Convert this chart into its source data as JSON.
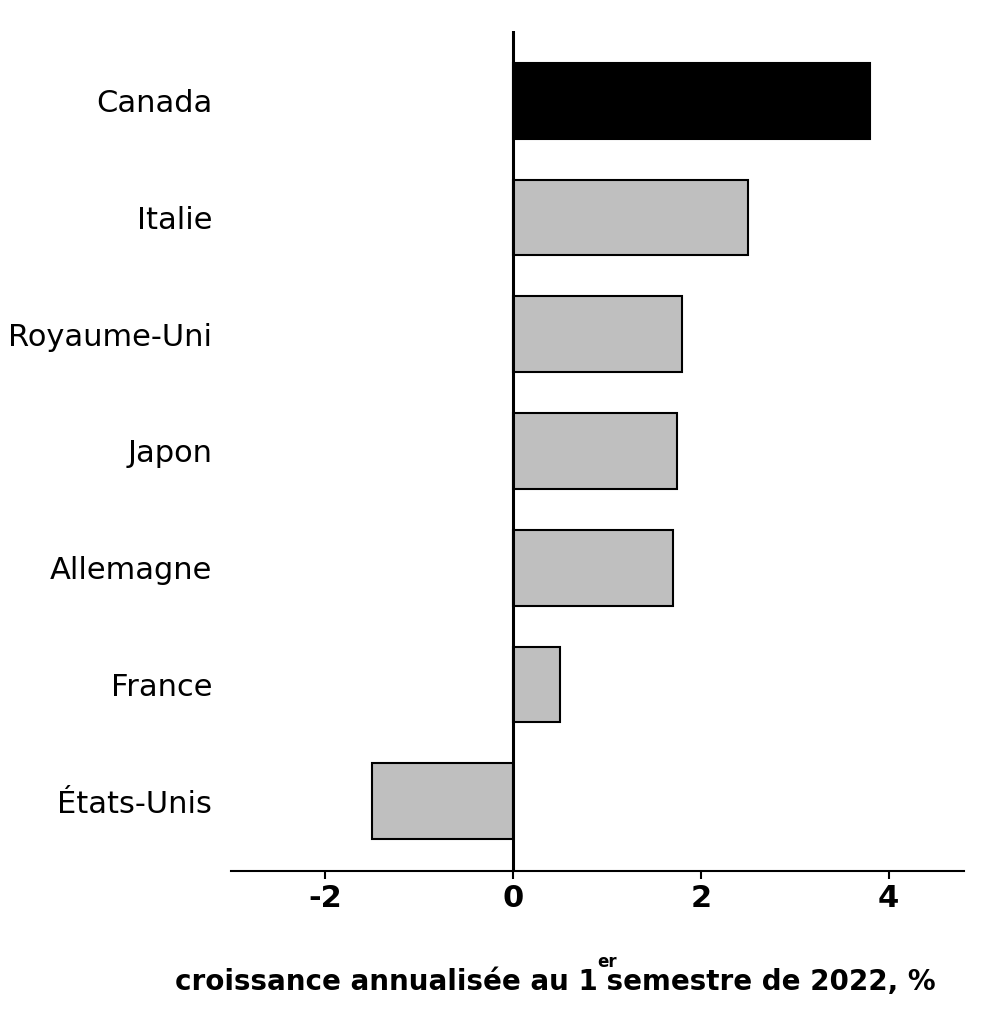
{
  "categories": [
    "Canada",
    "Italie",
    "Royaume-Uni",
    "Japon",
    "Allemagne",
    "France",
    "États-Unis"
  ],
  "values": [
    3.8,
    2.5,
    1.8,
    1.75,
    1.7,
    0.5,
    -1.5
  ],
  "bar_colors": [
    "#000000",
    "#bfbfbf",
    "#bfbfbf",
    "#bfbfbf",
    "#bfbfbf",
    "#bfbfbf",
    "#bfbfbf"
  ],
  "xlim": [
    -3.0,
    4.8
  ],
  "xticks": [
    -2,
    0,
    2,
    4
  ],
  "background_color": "#ffffff",
  "bar_edge_color": "#000000",
  "bar_linewidth": 1.5,
  "label_fontsize": 22,
  "tick_fontsize": 22,
  "xlabel_fontsize": 20,
  "xlabel_main": "croissance annualisée au 1",
  "xlabel_super": "er",
  "xlabel_rest": " semestre de 2022, %"
}
